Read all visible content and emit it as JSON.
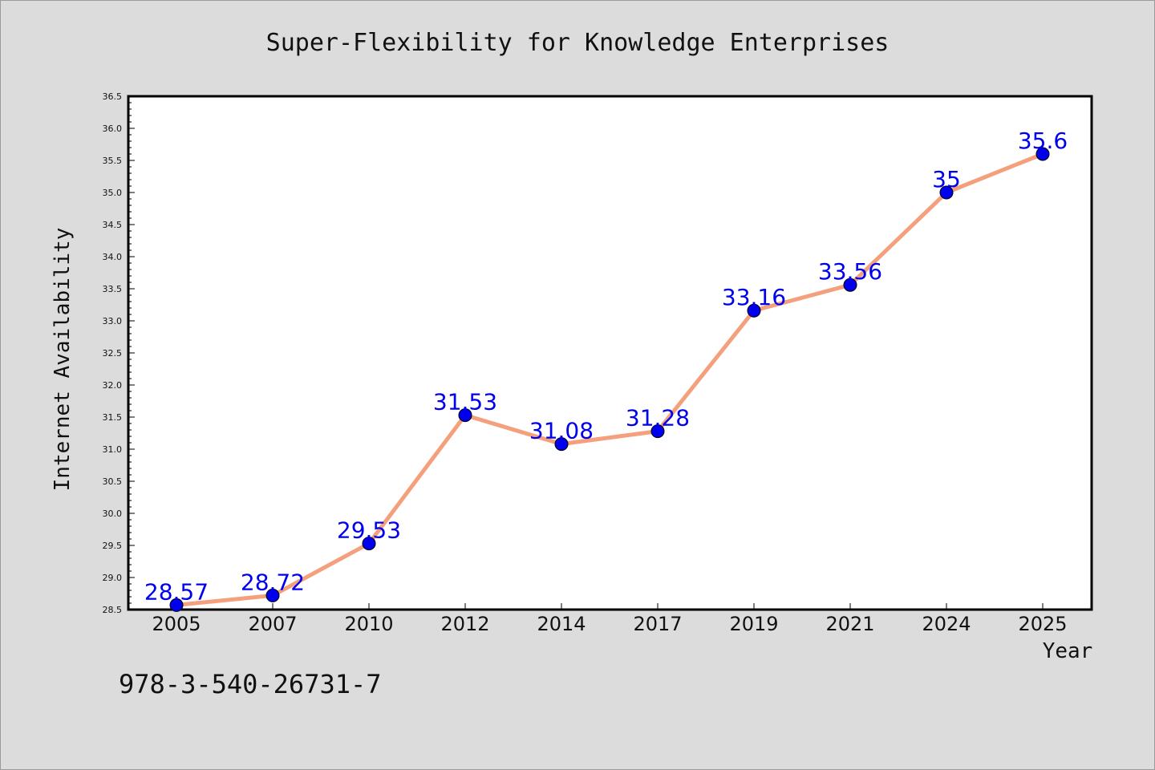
{
  "chart_data": {
    "type": "line",
    "title": "Super-Flexibility for Knowledge Enterprises",
    "xlabel": "Year",
    "ylabel": "Internet Availability",
    "categories": [
      "2005",
      "2007",
      "2010",
      "2012",
      "2014",
      "2017",
      "2019",
      "2021",
      "2024",
      "2025"
    ],
    "series": [
      {
        "values": [
          28.57,
          28.72,
          29.53,
          31.53,
          31.08,
          31.28,
          33.16,
          33.56,
          35,
          35.6
        ],
        "labels": [
          "28.57",
          "28.72",
          "29.53",
          "31.53",
          "31.08",
          "31.28",
          "33.16",
          "33.56",
          "35",
          "35.6"
        ],
        "line_color": "#f4a07c",
        "marker_color": "#0000ee",
        "label_color": "#0000ee"
      }
    ],
    "ylim": [
      28.5,
      36.5
    ],
    "y_ticks": [
      "28.5",
      "29.0",
      "29.5",
      "30.0",
      "30.5",
      "31.0",
      "31.5",
      "32.0",
      "32.5",
      "33.0",
      "33.5",
      "34.0",
      "34.5",
      "35.0",
      "35.5",
      "36.0",
      "36.5"
    ],
    "grid": false,
    "legend": "none"
  },
  "footnote": "978-3-540-26731-7",
  "colors": {
    "background": "#dcdcdc",
    "plot_area": "#ffffff",
    "axis": "#000000"
  }
}
